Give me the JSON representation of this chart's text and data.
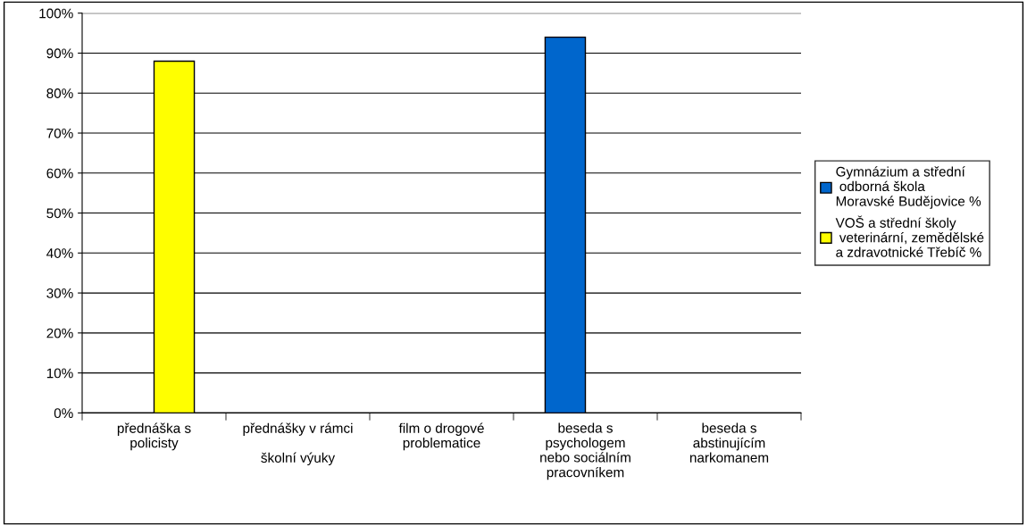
{
  "chart_data": {
    "type": "bar",
    "categories": [
      "přednáška s\npolicisty",
      "přednášky v rámci\n\nškolní výuky",
      "film o drogové\nproblematice",
      "beseda s\npsychologem\nnebo sociálním\npracovníkem",
      "beseda s\nabstinujícím\nnarkomanem"
    ],
    "series": [
      {
        "name": "Gymnázium a střední\n odborná škola\nMoravské Budějovice %",
        "color": "#0066cc",
        "values": [
          null,
          null,
          null,
          94,
          null
        ]
      },
      {
        "name": "VOŠ a střední školy\n veterinární, zemědělské\na zdravotnické Třebíč %",
        "color": "#ffff00",
        "values": [
          88,
          null,
          null,
          null,
          null
        ]
      }
    ],
    "ylim": [
      0,
      100
    ],
    "yticks": [
      {
        "value": 0,
        "label": "0%"
      },
      {
        "value": 10,
        "label": "10%"
      },
      {
        "value": 20,
        "label": "20%"
      },
      {
        "value": 30,
        "label": "30%"
      },
      {
        "value": 40,
        "label": "40%"
      },
      {
        "value": 50,
        "label": "50%"
      },
      {
        "value": 60,
        "label": "60%"
      },
      {
        "value": 70,
        "label": "70%"
      },
      {
        "value": 80,
        "label": "80%"
      },
      {
        "value": 90,
        "label": "90%"
      },
      {
        "value": 100,
        "label": "100%"
      }
    ],
    "grid": "y",
    "legend": "right"
  }
}
